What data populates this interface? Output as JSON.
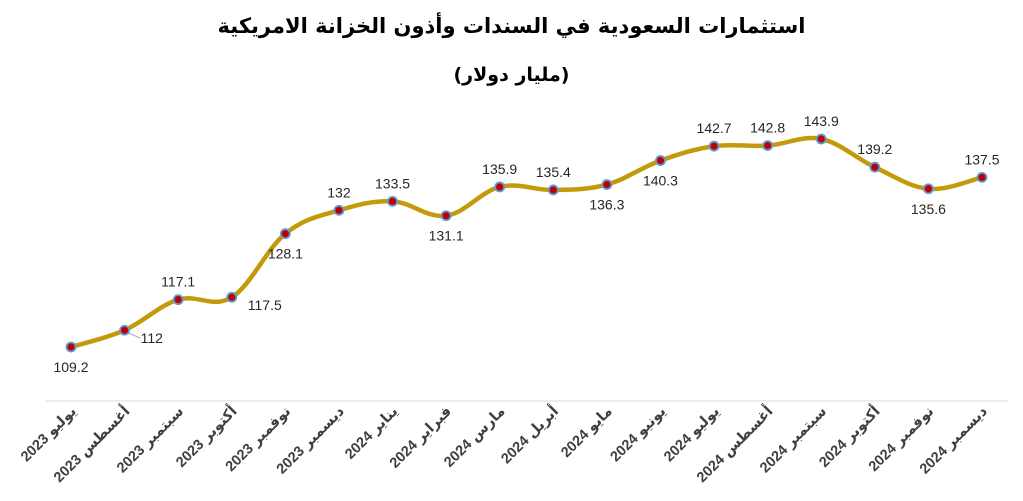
{
  "chart_data": {
    "type": "line",
    "title": "استثمارات السعودية في السندات وأذون الخزانة الامريكية",
    "subtitle": "(مليار دولار)",
    "xlabel": "",
    "ylabel": "",
    "categories": [
      "يوليو 2023",
      "أغسطس 2023",
      "سبتمبر 2023",
      "أكتوبر 2023",
      "نوفمبر 2023",
      "ديسمبر 2023",
      "يناير 2024",
      "فبراير 2024",
      "مارس 2024",
      "أبريل 2024",
      "مايو 2024",
      "يونيو 2024",
      "يوليو 2024",
      "أغسطس 2024",
      "سبتمبر 2024",
      "أكتوبر 2024",
      "نوفمبر 2024",
      "ديسمبر 2024"
    ],
    "series": [
      {
        "values": [
          109.2,
          112,
          117.1,
          117.5,
          128.1,
          132,
          133.5,
          131.1,
          135.9,
          135.4,
          136.3,
          140.3,
          142.7,
          142.8,
          143.9,
          139.2,
          135.6,
          137.5
        ]
      }
    ],
    "data_labels": [
      "109.2",
      "112",
      "117.1",
      "117.5",
      "128.1",
      "132",
      "133.5",
      "131.1",
      "135.9",
      "135.4",
      "136.3",
      "140.3",
      "142.7",
      "142.8",
      "143.9",
      "139.2",
      "135.6",
      "137.5"
    ],
    "ylim": [
      100,
      150
    ],
    "grid": false,
    "legend": "none",
    "line_color": "#C49A0A",
    "marker_fill": "#C00000",
    "marker_edge": "#5B9BD5",
    "axis_color": "#D9D9D9"
  }
}
